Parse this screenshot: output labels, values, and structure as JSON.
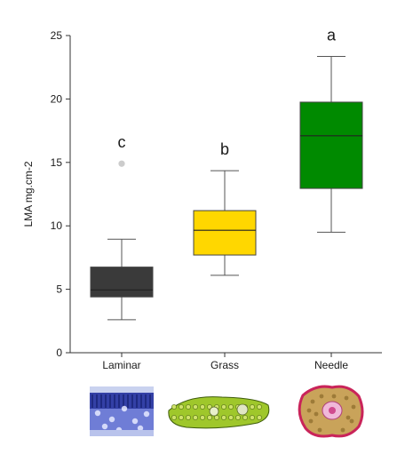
{
  "chart_data": {
    "type": "box",
    "title": "",
    "xlabel": "",
    "ylabel": "LMA mg.cm-2",
    "ylim": [
      0,
      25
    ],
    "yticks": [
      0,
      5,
      10,
      15,
      20,
      25
    ],
    "grid": false,
    "categories": [
      "Laminar",
      "Grass",
      "Needle"
    ],
    "boxes": [
      {
        "category": "Laminar",
        "whisker_low": 2.6,
        "q1": 4.4,
        "median": 4.95,
        "q3": 6.75,
        "whisker_high": 8.95,
        "outliers": [
          14.9
        ],
        "significance": "c",
        "color": "#3a3a3a"
      },
      {
        "category": "Grass",
        "whisker_low": 6.1,
        "q1": 7.7,
        "median": 9.65,
        "q3": 11.2,
        "whisker_high": 14.35,
        "outliers": [],
        "significance": "b",
        "color": "#ffd700"
      },
      {
        "category": "Needle",
        "whisker_low": 9.5,
        "q1": 12.95,
        "median": 17.1,
        "q3": 19.75,
        "whisker_high": 23.35,
        "outliers": [],
        "significance": "a",
        "color": "#008a00"
      }
    ],
    "outlier_color": "#cccccc"
  },
  "thumbnails": [
    {
      "category": "Laminar",
      "icon": "laminar-leaf-cross-section"
    },
    {
      "category": "Grass",
      "icon": "grass-leaf-cross-section"
    },
    {
      "category": "Needle",
      "icon": "needle-leaf-cross-section"
    }
  ]
}
